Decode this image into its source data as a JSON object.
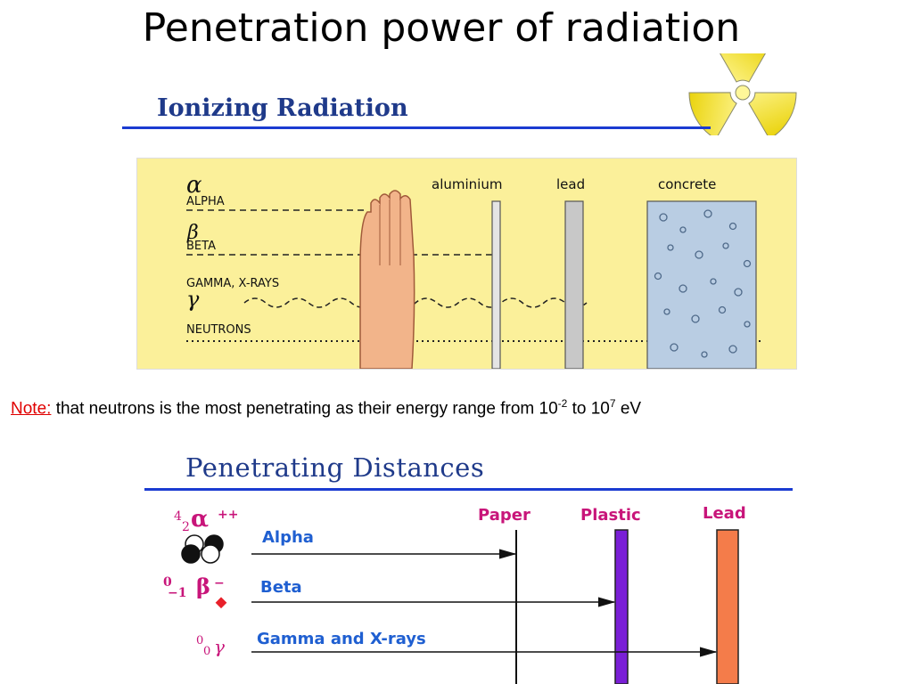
{
  "title": "Penetration power of radiation",
  "ionizing": {
    "heading": "Ionizing Radiation",
    "radiation_labels": {
      "alpha_symbol": "α",
      "alpha": "ALPHA",
      "beta_symbol": "β",
      "beta": "BETA",
      "gamma": "GAMMA, X-RAYS",
      "gamma_symbol": "γ",
      "neutrons": "NEUTRONS"
    },
    "barriers": [
      "aluminium",
      "lead",
      "concrete"
    ]
  },
  "note": {
    "label": "Note:",
    "text": "that neutrons is the most penetrating as their energy range from 10",
    "exp1": "-2",
    "mid": " to 10",
    "exp2": "7",
    "unit": " eV"
  },
  "penetrating": {
    "heading": "Penetrating Distances",
    "materials": [
      "Paper",
      "Plastic",
      "Lead"
    ],
    "particles": [
      "Alpha",
      "Beta",
      "Gamma and X-rays"
    ],
    "symbols": {
      "alpha_sup": "4",
      "alpha_sub": "2",
      "alpha_char": "α",
      "alpha_charge": "++",
      "beta_sup": "0",
      "beta_sub": "−1",
      "beta_char": "β",
      "beta_charge": "−",
      "gamma_sup": "0",
      "gamma_sub": "0",
      "gamma_char": "γ"
    },
    "colors": {
      "plastic": "#7a1fd6",
      "lead": "#f47c4a",
      "symbol": "#c8157a"
    }
  },
  "colors": {
    "panel_bg": "#fbf09a",
    "rule": "#1a3bd1",
    "note_red": "#e00000"
  }
}
